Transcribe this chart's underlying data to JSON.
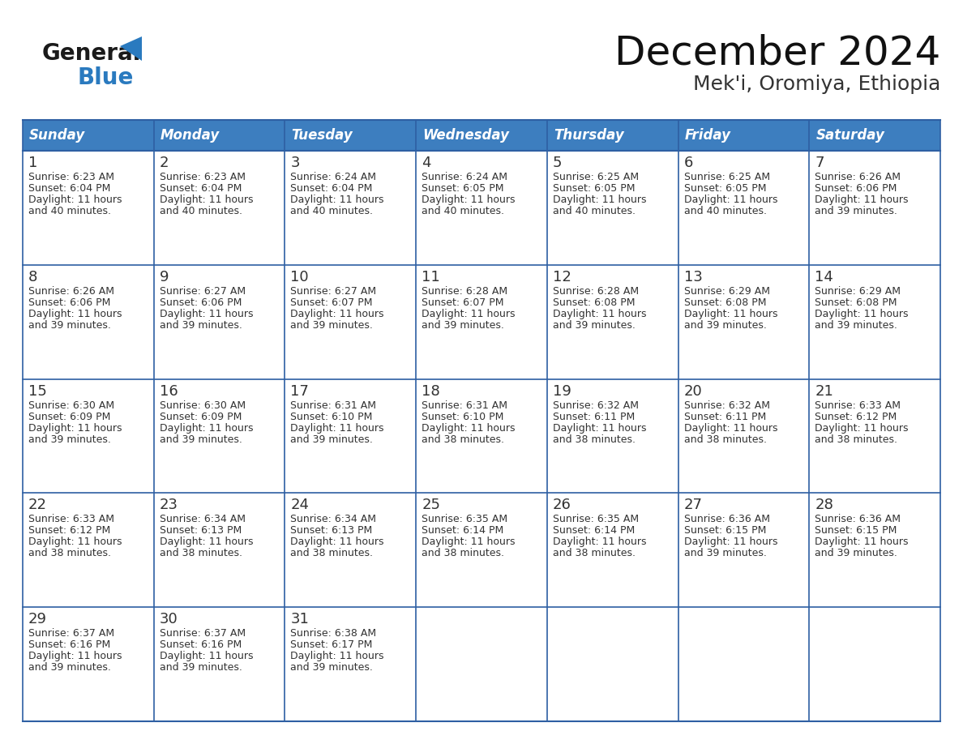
{
  "title": "December 2024",
  "subtitle": "Mek'i, Oromiya, Ethiopia",
  "header_bg": "#3d7ebf",
  "header_text": "#ffffff",
  "cell_bg": "#ffffff",
  "cell_text": "#333333",
  "border_color": "#2e5fa3",
  "days_of_week": [
    "Sunday",
    "Monday",
    "Tuesday",
    "Wednesday",
    "Thursday",
    "Friday",
    "Saturday"
  ],
  "weeks": [
    [
      {
        "day": 1,
        "sunrise": "6:23 AM",
        "sunset": "6:04 PM",
        "daylight": "11 hours and 40 minutes."
      },
      {
        "day": 2,
        "sunrise": "6:23 AM",
        "sunset": "6:04 PM",
        "daylight": "11 hours and 40 minutes."
      },
      {
        "day": 3,
        "sunrise": "6:24 AM",
        "sunset": "6:04 PM",
        "daylight": "11 hours and 40 minutes."
      },
      {
        "day": 4,
        "sunrise": "6:24 AM",
        "sunset": "6:05 PM",
        "daylight": "11 hours and 40 minutes."
      },
      {
        "day": 5,
        "sunrise": "6:25 AM",
        "sunset": "6:05 PM",
        "daylight": "11 hours and 40 minutes."
      },
      {
        "day": 6,
        "sunrise": "6:25 AM",
        "sunset": "6:05 PM",
        "daylight": "11 hours and 40 minutes."
      },
      {
        "day": 7,
        "sunrise": "6:26 AM",
        "sunset": "6:06 PM",
        "daylight": "11 hours and 39 minutes."
      }
    ],
    [
      {
        "day": 8,
        "sunrise": "6:26 AM",
        "sunset": "6:06 PM",
        "daylight": "11 hours and 39 minutes."
      },
      {
        "day": 9,
        "sunrise": "6:27 AM",
        "sunset": "6:06 PM",
        "daylight": "11 hours and 39 minutes."
      },
      {
        "day": 10,
        "sunrise": "6:27 AM",
        "sunset": "6:07 PM",
        "daylight": "11 hours and 39 minutes."
      },
      {
        "day": 11,
        "sunrise": "6:28 AM",
        "sunset": "6:07 PM",
        "daylight": "11 hours and 39 minutes."
      },
      {
        "day": 12,
        "sunrise": "6:28 AM",
        "sunset": "6:08 PM",
        "daylight": "11 hours and 39 minutes."
      },
      {
        "day": 13,
        "sunrise": "6:29 AM",
        "sunset": "6:08 PM",
        "daylight": "11 hours and 39 minutes."
      },
      {
        "day": 14,
        "sunrise": "6:29 AM",
        "sunset": "6:08 PM",
        "daylight": "11 hours and 39 minutes."
      }
    ],
    [
      {
        "day": 15,
        "sunrise": "6:30 AM",
        "sunset": "6:09 PM",
        "daylight": "11 hours and 39 minutes."
      },
      {
        "day": 16,
        "sunrise": "6:30 AM",
        "sunset": "6:09 PM",
        "daylight": "11 hours and 39 minutes."
      },
      {
        "day": 17,
        "sunrise": "6:31 AM",
        "sunset": "6:10 PM",
        "daylight": "11 hours and 39 minutes."
      },
      {
        "day": 18,
        "sunrise": "6:31 AM",
        "sunset": "6:10 PM",
        "daylight": "11 hours and 38 minutes."
      },
      {
        "day": 19,
        "sunrise": "6:32 AM",
        "sunset": "6:11 PM",
        "daylight": "11 hours and 38 minutes."
      },
      {
        "day": 20,
        "sunrise": "6:32 AM",
        "sunset": "6:11 PM",
        "daylight": "11 hours and 38 minutes."
      },
      {
        "day": 21,
        "sunrise": "6:33 AM",
        "sunset": "6:12 PM",
        "daylight": "11 hours and 38 minutes."
      }
    ],
    [
      {
        "day": 22,
        "sunrise": "6:33 AM",
        "sunset": "6:12 PM",
        "daylight": "11 hours and 38 minutes."
      },
      {
        "day": 23,
        "sunrise": "6:34 AM",
        "sunset": "6:13 PM",
        "daylight": "11 hours and 38 minutes."
      },
      {
        "day": 24,
        "sunrise": "6:34 AM",
        "sunset": "6:13 PM",
        "daylight": "11 hours and 38 minutes."
      },
      {
        "day": 25,
        "sunrise": "6:35 AM",
        "sunset": "6:14 PM",
        "daylight": "11 hours and 38 minutes."
      },
      {
        "day": 26,
        "sunrise": "6:35 AM",
        "sunset": "6:14 PM",
        "daylight": "11 hours and 38 minutes."
      },
      {
        "day": 27,
        "sunrise": "6:36 AM",
        "sunset": "6:15 PM",
        "daylight": "11 hours and 39 minutes."
      },
      {
        "day": 28,
        "sunrise": "6:36 AM",
        "sunset": "6:15 PM",
        "daylight": "11 hours and 39 minutes."
      }
    ],
    [
      {
        "day": 29,
        "sunrise": "6:37 AM",
        "sunset": "6:16 PM",
        "daylight": "11 hours and 39 minutes."
      },
      {
        "day": 30,
        "sunrise": "6:37 AM",
        "sunset": "6:16 PM",
        "daylight": "11 hours and 39 minutes."
      },
      {
        "day": 31,
        "sunrise": "6:38 AM",
        "sunset": "6:17 PM",
        "daylight": "11 hours and 39 minutes."
      },
      null,
      null,
      null,
      null
    ]
  ],
  "logo_color1": "#1a1a1a",
  "logo_color2": "#2a7abf",
  "title_fontsize": 36,
  "subtitle_fontsize": 18,
  "header_fontsize": 12,
  "day_number_fontsize": 13,
  "cell_text_fontsize": 9
}
